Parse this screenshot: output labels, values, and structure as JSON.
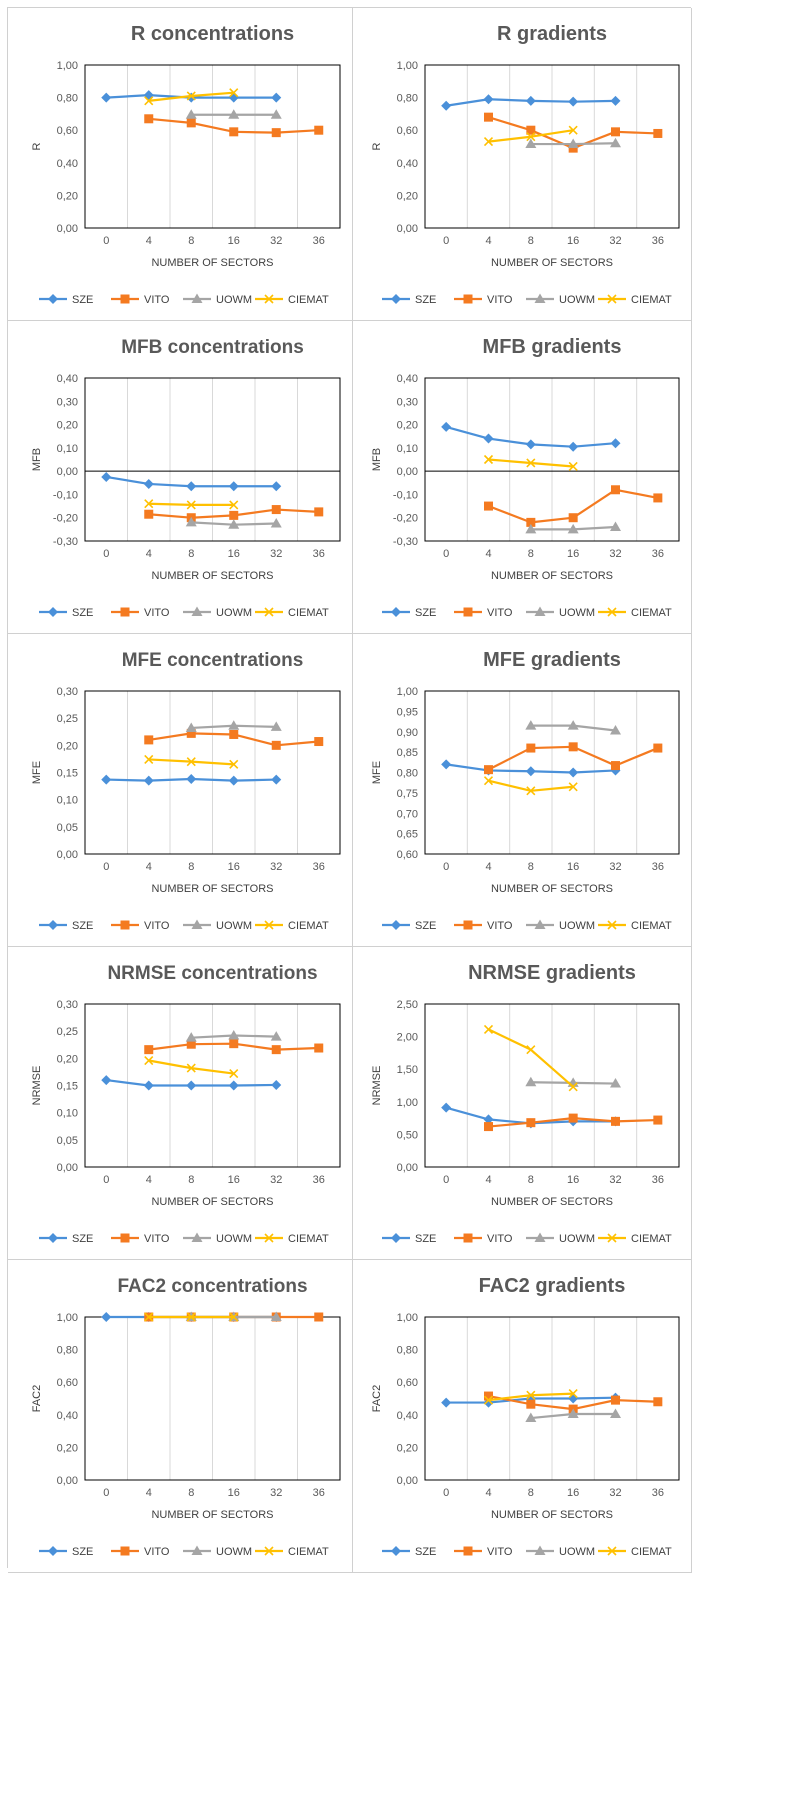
{
  "colors": {
    "SZE": "#4a90d9",
    "VITO": "#f47a20",
    "UOWM": "#a5a5a5",
    "CIEMAT": "#ffc000",
    "grid": "#d9d9d9",
    "zero": "#000000"
  },
  "legend": [
    "SZE",
    "VITO",
    "UOWM",
    "CIEMAT"
  ],
  "chart_data": [
    {
      "type": "line",
      "title": "R concentrations",
      "xlabel": "NUMBER OF SECTORS",
      "ylabel": "R",
      "categories": [
        "0",
        "4",
        "8",
        "16",
        "32",
        "36"
      ],
      "ylim": [
        0,
        1
      ],
      "ytick_step": 0.2,
      "ytick_labels": [
        "0,00",
        "0,20",
        "0,40",
        "0,60",
        "0,80",
        "1,00"
      ],
      "grid": true,
      "legend": "bottom",
      "series": [
        {
          "name": "SZE",
          "marker": "diamond",
          "values": [
            0.8,
            0.815,
            0.8,
            0.8,
            0.8,
            null
          ]
        },
        {
          "name": "VITO",
          "marker": "square",
          "values": [
            null,
            0.67,
            0.645,
            0.59,
            0.585,
            0.6
          ]
        },
        {
          "name": "UOWM",
          "marker": "triangle",
          "values": [
            null,
            null,
            0.695,
            0.695,
            0.695,
            null
          ]
        },
        {
          "name": "CIEMAT",
          "marker": "x",
          "values": [
            null,
            0.78,
            0.81,
            0.83,
            null,
            null
          ]
        }
      ]
    },
    {
      "type": "line",
      "title": "R gradients",
      "xlabel": "NUMBER OF SECTORS",
      "ylabel": "R",
      "categories": [
        "0",
        "4",
        "8",
        "16",
        "32",
        "36"
      ],
      "ylim": [
        0,
        1
      ],
      "ytick_step": 0.2,
      "ytick_labels": [
        "0,00",
        "0,20",
        "0,40",
        "0,60",
        "0,80",
        "1,00"
      ],
      "grid": true,
      "legend": "bottom",
      "series": [
        {
          "name": "SZE",
          "marker": "diamond",
          "values": [
            0.75,
            0.79,
            0.78,
            0.775,
            0.78,
            null
          ]
        },
        {
          "name": "VITO",
          "marker": "square",
          "values": [
            null,
            0.68,
            0.6,
            0.49,
            0.59,
            0.58
          ]
        },
        {
          "name": "UOWM",
          "marker": "triangle",
          "values": [
            null,
            null,
            0.515,
            0.515,
            0.52,
            null
          ]
        },
        {
          "name": "CIEMAT",
          "marker": "x",
          "values": [
            null,
            0.53,
            0.56,
            0.6,
            null,
            null
          ]
        }
      ]
    },
    {
      "type": "line",
      "title": "MFB concentrations",
      "xlabel": "NUMBER OF SECTORS",
      "ylabel": "MFB",
      "categories": [
        "0",
        "4",
        "8",
        "16",
        "32",
        "36"
      ],
      "ylim": [
        -0.3,
        0.4
      ],
      "ytick_step": 0.1,
      "ytick_labels": [
        "-0,30",
        "-0,20",
        "-0,10",
        "0,00",
        "0,10",
        "0,20",
        "0,30",
        "0,40"
      ],
      "grid": true,
      "zero_line": true,
      "legend": "bottom",
      "series": [
        {
          "name": "SZE",
          "marker": "diamond",
          "values": [
            -0.025,
            -0.055,
            -0.065,
            -0.065,
            -0.065,
            null
          ]
        },
        {
          "name": "VITO",
          "marker": "square",
          "values": [
            null,
            -0.185,
            -0.2,
            -0.19,
            -0.165,
            -0.175
          ]
        },
        {
          "name": "UOWM",
          "marker": "triangle",
          "values": [
            null,
            null,
            -0.22,
            -0.23,
            -0.225,
            null
          ]
        },
        {
          "name": "CIEMAT",
          "marker": "x",
          "values": [
            null,
            -0.14,
            -0.145,
            -0.145,
            null,
            null
          ]
        }
      ]
    },
    {
      "type": "line",
      "title": "MFB gradients",
      "xlabel": "NUMBER OF SECTORS",
      "ylabel": "MFB",
      "categories": [
        "0",
        "4",
        "8",
        "16",
        "32",
        "36"
      ],
      "ylim": [
        -0.3,
        0.4
      ],
      "ytick_step": 0.1,
      "ytick_labels": [
        "-0,30",
        "-0,20",
        "-0,10",
        "0,00",
        "0,10",
        "0,20",
        "0,30",
        "0,40"
      ],
      "grid": true,
      "zero_line": true,
      "legend": "bottom",
      "series": [
        {
          "name": "SZE",
          "marker": "diamond",
          "values": [
            0.19,
            0.14,
            0.115,
            0.105,
            0.12,
            null
          ]
        },
        {
          "name": "VITO",
          "marker": "square",
          "values": [
            null,
            -0.15,
            -0.22,
            -0.2,
            -0.08,
            -0.115
          ]
        },
        {
          "name": "UOWM",
          "marker": "triangle",
          "values": [
            null,
            null,
            -0.25,
            -0.25,
            -0.24,
            null
          ]
        },
        {
          "name": "CIEMAT",
          "marker": "x",
          "values": [
            null,
            0.05,
            0.035,
            0.02,
            null,
            null
          ]
        }
      ]
    },
    {
      "type": "line",
      "title": "MFE concentrations",
      "xlabel": "NUMBER OF SECTORS",
      "ylabel": "MFE",
      "categories": [
        "0",
        "4",
        "8",
        "16",
        "32",
        "36"
      ],
      "ylim": [
        0,
        0.3
      ],
      "ytick_step": 0.05,
      "ytick_labels": [
        "0,00",
        "0,05",
        "0,10",
        "0,15",
        "0,20",
        "0,25",
        "0,30"
      ],
      "grid": true,
      "legend": "bottom",
      "series": [
        {
          "name": "SZE",
          "marker": "diamond",
          "values": [
            0.137,
            0.135,
            0.138,
            0.135,
            0.137,
            null
          ]
        },
        {
          "name": "VITO",
          "marker": "square",
          "values": [
            null,
            0.21,
            0.222,
            0.22,
            0.2,
            0.207
          ]
        },
        {
          "name": "UOWM",
          "marker": "triangle",
          "values": [
            null,
            null,
            0.232,
            0.236,
            0.234,
            null
          ]
        },
        {
          "name": "CIEMAT",
          "marker": "x",
          "values": [
            null,
            0.174,
            0.17,
            0.165,
            null,
            null
          ]
        }
      ]
    },
    {
      "type": "line",
      "title": "MFE gradients",
      "xlabel": "NUMBER OF SECTORS",
      "ylabel": "MFE",
      "categories": [
        "0",
        "4",
        "8",
        "16",
        "32",
        "36"
      ],
      "ylim": [
        0.6,
        1
      ],
      "ytick_step": 0.05,
      "ytick_labels": [
        "0,60",
        "0,65",
        "0,70",
        "0,75",
        "0,80",
        "0,85",
        "0,90",
        "0,95",
        "1,00"
      ],
      "grid": true,
      "legend": "bottom",
      "series": [
        {
          "name": "SZE",
          "marker": "diamond",
          "values": [
            0.82,
            0.805,
            0.803,
            0.8,
            0.805,
            null
          ]
        },
        {
          "name": "VITO",
          "marker": "square",
          "values": [
            null,
            0.807,
            0.86,
            0.863,
            0.817,
            0.86
          ]
        },
        {
          "name": "UOWM",
          "marker": "triangle",
          "values": [
            null,
            null,
            0.915,
            0.915,
            0.903,
            null
          ]
        },
        {
          "name": "CIEMAT",
          "marker": "x",
          "values": [
            null,
            0.78,
            0.755,
            0.765,
            null,
            null
          ]
        }
      ]
    },
    {
      "type": "line",
      "title": "NRMSE concentrations",
      "xlabel": "NUMBER OF SECTORS",
      "ylabel": "NRMSE",
      "categories": [
        "0",
        "4",
        "8",
        "16",
        "32",
        "36"
      ],
      "ylim": [
        0,
        0.3
      ],
      "ytick_step": 0.05,
      "ytick_labels": [
        "0,00",
        "0,05",
        "0,10",
        "0,15",
        "0,20",
        "0,25",
        "0,30"
      ],
      "grid": true,
      "legend": "bottom",
      "series": [
        {
          "name": "SZE",
          "marker": "diamond",
          "values": [
            0.16,
            0.15,
            0.15,
            0.15,
            0.151,
            null
          ]
        },
        {
          "name": "VITO",
          "marker": "square",
          "values": [
            null,
            0.216,
            0.226,
            0.227,
            0.216,
            0.219
          ]
        },
        {
          "name": "UOWM",
          "marker": "triangle",
          "values": [
            null,
            null,
            0.238,
            0.242,
            0.24,
            null
          ]
        },
        {
          "name": "CIEMAT",
          "marker": "x",
          "values": [
            null,
            0.196,
            0.182,
            0.172,
            null,
            null
          ]
        }
      ]
    },
    {
      "type": "line",
      "title": "NRMSE gradients",
      "xlabel": "NUMBER OF SECTORS",
      "ylabel": "NRMSE",
      "categories": [
        "0",
        "4",
        "8",
        "16",
        "32",
        "36"
      ],
      "ylim": [
        0,
        2.5
      ],
      "ytick_step": 0.5,
      "ytick_labels": [
        "0,00",
        "0,50",
        "1,00",
        "1,50",
        "2,00",
        "2,50"
      ],
      "grid": true,
      "legend": "bottom",
      "series": [
        {
          "name": "SZE",
          "marker": "diamond",
          "values": [
            0.91,
            0.73,
            0.67,
            0.7,
            0.7,
            null
          ]
        },
        {
          "name": "VITO",
          "marker": "square",
          "values": [
            null,
            0.62,
            0.68,
            0.75,
            0.7,
            0.72
          ]
        },
        {
          "name": "UOWM",
          "marker": "triangle",
          "values": [
            null,
            null,
            1.3,
            1.29,
            1.28,
            null
          ]
        },
        {
          "name": "CIEMAT",
          "marker": "x",
          "values": [
            null,
            2.11,
            1.8,
            1.23,
            null,
            null
          ]
        }
      ]
    },
    {
      "type": "line",
      "title": "FAC2 concentrations",
      "xlabel": "NUMBER OF SECTORS",
      "ylabel": "FAC2",
      "categories": [
        "0",
        "4",
        "8",
        "16",
        "32",
        "36"
      ],
      "ylim": [
        0,
        1
      ],
      "ytick_step": 0.2,
      "ytick_labels": [
        "0,00",
        "0,20",
        "0,40",
        "0,60",
        "0,80",
        "1,00"
      ],
      "grid": true,
      "legend": "bottom",
      "series": [
        {
          "name": "SZE",
          "marker": "diamond",
          "values": [
            1.0,
            1.0,
            1.0,
            1.0,
            1.0,
            null
          ]
        },
        {
          "name": "VITO",
          "marker": "square",
          "values": [
            null,
            1.0,
            1.0,
            1.0,
            1.0,
            1.0
          ]
        },
        {
          "name": "UOWM",
          "marker": "triangle",
          "values": [
            null,
            null,
            1.0,
            1.0,
            1.0,
            null
          ]
        },
        {
          "name": "CIEMAT",
          "marker": "x",
          "values": [
            null,
            1.0,
            1.0,
            1.0,
            null,
            null
          ]
        }
      ]
    },
    {
      "type": "line",
      "title": "FAC2 gradients",
      "xlabel": "NUMBER OF SECTORS",
      "ylabel": "FAC2",
      "categories": [
        "0",
        "4",
        "8",
        "16",
        "32",
        "36"
      ],
      "ylim": [
        0,
        1
      ],
      "ytick_step": 0.2,
      "ytick_labels": [
        "0,00",
        "0,20",
        "0,40",
        "0,60",
        "0,80",
        "1,00"
      ],
      "grid": true,
      "legend": "bottom",
      "series": [
        {
          "name": "SZE",
          "marker": "diamond",
          "values": [
            0.475,
            0.475,
            0.5,
            0.5,
            0.505,
            null
          ]
        },
        {
          "name": "VITO",
          "marker": "square",
          "values": [
            null,
            0.515,
            0.465,
            0.435,
            0.49,
            0.48
          ]
        },
        {
          "name": "UOWM",
          "marker": "triangle",
          "values": [
            null,
            null,
            0.38,
            0.405,
            0.405,
            null
          ]
        },
        {
          "name": "CIEMAT",
          "marker": "x",
          "values": [
            null,
            0.49,
            0.52,
            0.53,
            null,
            null
          ]
        }
      ]
    }
  ]
}
